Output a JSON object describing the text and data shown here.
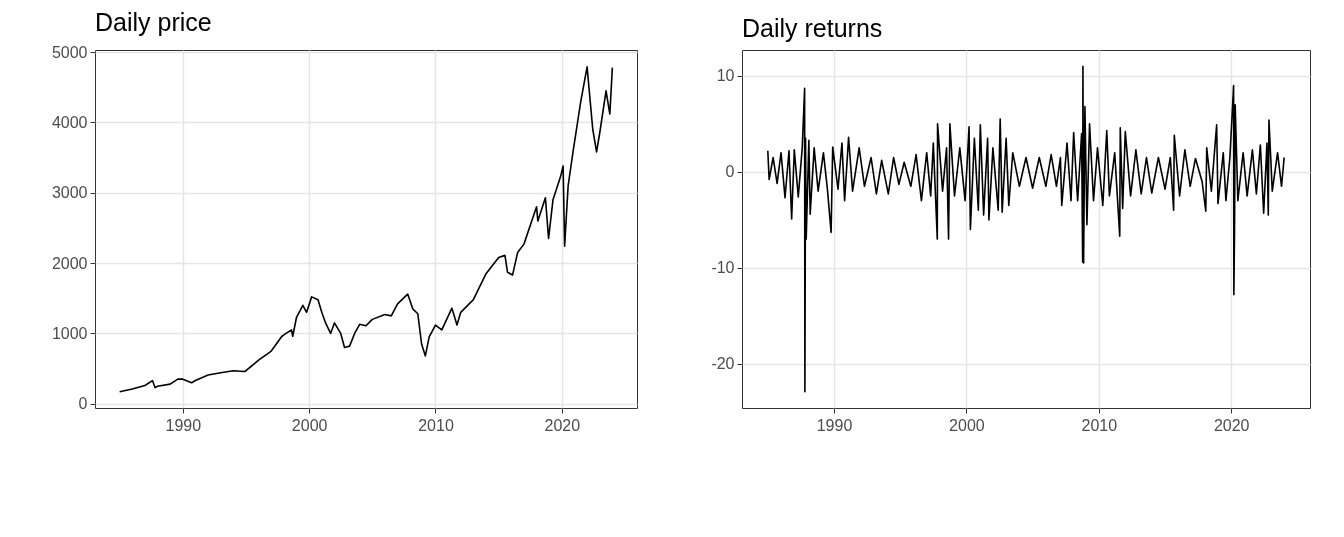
{
  "chart_data": [
    {
      "type": "line",
      "title": "Daily price",
      "xlim": [
        1983.05,
        2025.95
      ],
      "xticks": [
        1990,
        2000,
        2010,
        2020
      ],
      "ylim": [
        -60,
        5030
      ],
      "yticks": [
        0,
        1000,
        2000,
        3000,
        4000,
        5000
      ],
      "grid": true,
      "x": [
        1985,
        1986,
        1987,
        1987.6,
        1987.8,
        1988,
        1989,
        1989.6,
        1990,
        1990.7,
        1991,
        1992,
        1993,
        1994,
        1994.9,
        1995,
        1996,
        1997,
        1997.8,
        1998,
        1998.6,
        1998.7,
        1999,
        1999.5,
        1999.8,
        2000.2,
        2000.7,
        2001,
        2001.3,
        2001.7,
        2002,
        2002.5,
        2002.8,
        2003.2,
        2003.6,
        2004,
        2004.5,
        2005,
        2006,
        2006.5,
        2007,
        2007.8,
        2008.2,
        2008.6,
        2008.9,
        2009.2,
        2009.5,
        2010,
        2010.5,
        2011.3,
        2011.7,
        2012,
        2013,
        2014,
        2015,
        2015.5,
        2015.7,
        2016.1,
        2016.5,
        2017,
        2018,
        2018.1,
        2018.7,
        2018.95,
        2019.3,
        2019.9,
        2020.1,
        2020.22,
        2020.5,
        2020.9,
        2021.5,
        2022,
        2022.45,
        2022.75,
        2023,
        2023.5,
        2023.8,
        2024
      ],
      "series": [
        {
          "color": "#000000",
          "values": [
            170,
            210,
            260,
            330,
            230,
            250,
            280,
            350,
            350,
            300,
            330,
            410,
            440,
            470,
            460,
            470,
            620,
            750,
            950,
            980,
            1050,
            960,
            1230,
            1400,
            1300,
            1520,
            1480,
            1300,
            1150,
            1000,
            1150,
            1000,
            800,
            820,
            1000,
            1130,
            1110,
            1200,
            1270,
            1250,
            1420,
            1560,
            1350,
            1280,
            850,
            680,
            950,
            1120,
            1050,
            1360,
            1120,
            1300,
            1480,
            1850,
            2080,
            2110,
            1870,
            1830,
            2150,
            2270,
            2800,
            2600,
            2930,
            2350,
            2900,
            3230,
            3380,
            2240,
            3100,
            3600,
            4300,
            4790,
            3900,
            3580,
            3850,
            4450,
            4120,
            4780
          ]
        }
      ]
    },
    {
      "type": "line",
      "title": "Daily returns",
      "xlim": [
        1983.05,
        2025.95
      ],
      "xticks": [
        1990,
        2000,
        2010,
        2020
      ],
      "ylim": [
        -24.6,
        12.7
      ],
      "yticks": [
        -20,
        -10,
        0,
        10
      ],
      "grid": true,
      "x": [
        1985.0,
        1985.1,
        1985.4,
        1985.7,
        1986.0,
        1986.3,
        1986.6,
        1986.8,
        1987.0,
        1987.3,
        1987.6,
        1987.78,
        1987.8,
        1987.85,
        1987.9,
        1988.1,
        1988.2,
        1988.5,
        1988.8,
        1989.2,
        1989.5,
        1989.78,
        1989.9,
        1990.3,
        1990.6,
        1990.8,
        1991.1,
        1991.4,
        1991.9,
        1992.3,
        1992.8,
        1993.2,
        1993.6,
        1994.1,
        1994.5,
        1994.9,
        1995.3,
        1995.8,
        1996.2,
        1996.6,
        1997.0,
        1997.3,
        1997.5,
        1997.8,
        1997.82,
        1998.2,
        1998.5,
        1998.65,
        1998.75,
        1999.1,
        1999.5,
        1999.9,
        2000.2,
        2000.3,
        2000.6,
        2000.9,
        2001.05,
        2001.3,
        2001.6,
        2001.7,
        2002.0,
        2002.4,
        2002.55,
        2002.7,
        2003.0,
        2003.2,
        2003.5,
        2004.0,
        2004.5,
        2005.0,
        2005.5,
        2006.0,
        2006.4,
        2006.8,
        2007.1,
        2007.2,
        2007.6,
        2007.9,
        2008.1,
        2008.4,
        2008.7,
        2008.78,
        2008.8,
        2008.85,
        2008.95,
        2009.1,
        2009.3,
        2009.6,
        2009.9,
        2010.3,
        2010.6,
        2010.8,
        2011.2,
        2011.58,
        2011.62,
        2011.8,
        2012.0,
        2012.4,
        2012.8,
        2013.2,
        2013.6,
        2014.0,
        2014.5,
        2015.0,
        2015.4,
        2015.65,
        2015.7,
        2016.1,
        2016.5,
        2016.9,
        2017.3,
        2017.8,
        2018.08,
        2018.15,
        2018.5,
        2018.9,
        2019.0,
        2019.4,
        2019.6,
        2019.9,
        2020.18,
        2020.2,
        2020.25,
        2020.3,
        2020.5,
        2020.9,
        2021.2,
        2021.6,
        2021.9,
        2022.2,
        2022.45,
        2022.7,
        2022.8,
        2022.85,
        2023.1,
        2023.5,
        2023.8,
        2024.0
      ],
      "series": [
        {
          "color": "#000000",
          "values": [
            2.2,
            -0.8,
            1.5,
            -1.2,
            2.0,
            -2.7,
            2.2,
            -4.9,
            2.3,
            -2.6,
            2.5,
            8.7,
            -22.9,
            3.5,
            -7.0,
            3.3,
            -4.4,
            2.5,
            -2.0,
            2.0,
            -1.8,
            -6.3,
            2.6,
            -1.8,
            3.0,
            -3.0,
            3.6,
            -2.0,
            2.5,
            -1.5,
            1.5,
            -2.3,
            1.2,
            -2.3,
            1.5,
            -1.3,
            1.0,
            -1.5,
            1.8,
            -3.0,
            2.0,
            -2.5,
            3.0,
            -7.0,
            5.0,
            -2.0,
            2.5,
            -7.0,
            5.0,
            -2.5,
            2.5,
            -3.0,
            4.7,
            -6.0,
            3.5,
            -4.0,
            4.9,
            -4.5,
            3.5,
            -5.0,
            2.5,
            -4.0,
            5.5,
            -4.2,
            3.5,
            -3.5,
            2.0,
            -1.5,
            1.5,
            -1.7,
            1.5,
            -1.5,
            1.8,
            -1.5,
            1.5,
            -3.5,
            3.0,
            -3.0,
            4.1,
            -3.0,
            4.0,
            -9.4,
            11.0,
            -9.5,
            6.8,
            -5.5,
            5.0,
            -3.0,
            2.5,
            -3.5,
            4.3,
            -2.5,
            2.0,
            -6.7,
            4.6,
            -3.8,
            4.2,
            -2.5,
            2.3,
            -2.3,
            1.5,
            -2.2,
            1.5,
            -1.8,
            1.5,
            -4.0,
            3.8,
            -2.5,
            2.3,
            -1.5,
            1.4,
            -1.0,
            -4.1,
            2.5,
            -2.0,
            4.9,
            -3.3,
            2.0,
            -3.0,
            1.5,
            9.0,
            -12.8,
            -6.2,
            7.0,
            -3.0,
            2.0,
            -2.5,
            2.3,
            -2.3,
            2.8,
            -4.3,
            3.0,
            -4.5,
            5.4,
            -2.0,
            2.0,
            -1.5,
            1.5
          ]
        }
      ]
    }
  ]
}
